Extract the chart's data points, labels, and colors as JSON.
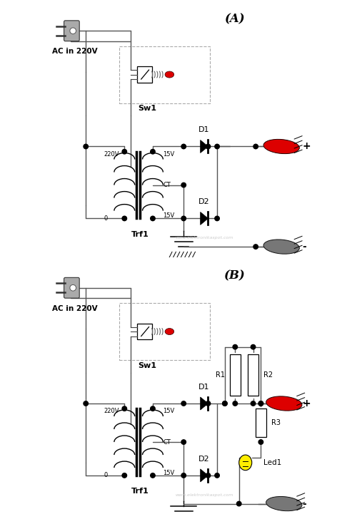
{
  "title_A": "(A)",
  "title_B": "(B)",
  "label_ac": "AC in 220V",
  "label_sw1": "Sw1",
  "label_trf1": "Trf1",
  "label_d1": "D1",
  "label_d2": "D2",
  "label_r1": "R1",
  "label_r2": "R2",
  "label_r3": "R3",
  "label_led1": "Led1",
  "label_220v": "220V",
  "label_15v_top": "15V",
  "label_ct": "CT",
  "label_15v_bot": "15V",
  "label_0": "0",
  "label_plus": "+",
  "label_minus": "-",
  "watermark": "www.elektronikaspot.com",
  "bg_color": "#ffffff",
  "red_color": "#dd0000",
  "gray_color": "#777777",
  "yellow_color": "#ffee00",
  "dashed_color": "#aaaaaa",
  "wire_color": "#555555",
  "lw": 1.0
}
